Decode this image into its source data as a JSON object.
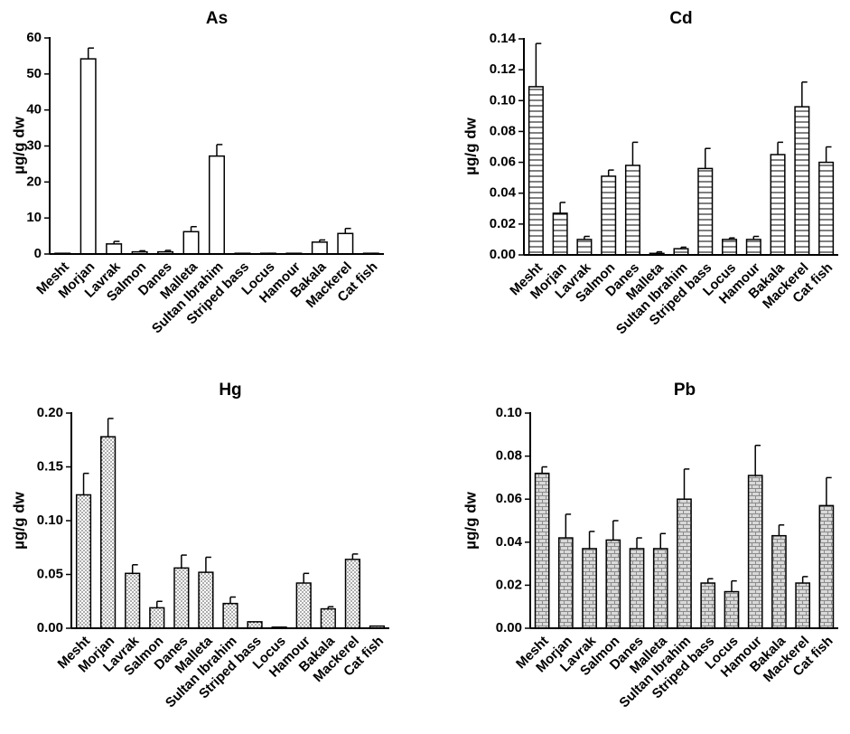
{
  "chart_data": [
    {
      "type": "bar",
      "title": "As",
      "ylabel": "µg/g dw",
      "xlabel": "",
      "ylim": [
        0,
        60
      ],
      "yticks": [
        "0",
        "10",
        "20",
        "30",
        "40",
        "50",
        "60"
      ],
      "pattern": "plain",
      "categories": [
        "Mesht",
        "Morjan",
        "Lavrak",
        "Salmon",
        "Danes",
        "Malleta",
        "Sultan Ibrahim",
        "Striped bass",
        "Locus",
        "Hamour",
        "Bakala",
        "Mackerel",
        "Cat fish"
      ],
      "values": [
        0,
        54.2,
        2.8,
        0.6,
        0.6,
        6.2,
        27.2,
        0,
        0.1,
        0,
        3.3,
        5.7,
        0.1
      ],
      "errors": [
        0,
        3.0,
        0.7,
        0.3,
        0.4,
        1.4,
        3.2,
        0,
        0.1,
        0,
        0.6,
        1.4,
        0.1
      ]
    },
    {
      "type": "bar",
      "title": "Cd",
      "ylabel": "µg/g dw",
      "xlabel": "",
      "ylim": [
        0,
        0.14
      ],
      "yticks": [
        "0.00",
        "0.02",
        "0.04",
        "0.06",
        "0.08",
        "0.10",
        "0.12",
        "0.14"
      ],
      "pattern": "horizontal-lines",
      "categories": [
        "Mesht",
        "Morjan",
        "Lavrak",
        "Salmon",
        "Danes",
        "Malleta",
        "Sultan Ibrahim",
        "Striped bass",
        "Locus",
        "Hamour",
        "Bakala",
        "Mackerel",
        "Cat fish"
      ],
      "values": [
        0.109,
        0.027,
        0.01,
        0.051,
        0.058,
        0.001,
        0.004,
        0.056,
        0.01,
        0.01,
        0.065,
        0.096,
        0.06
      ],
      "errors": [
        0.028,
        0.007,
        0.002,
        0.004,
        0.015,
        0.001,
        0.001,
        0.013,
        0.001,
        0.002,
        0.008,
        0.016,
        0.01
      ]
    },
    {
      "type": "bar",
      "title": "Hg",
      "ylabel": "µg/g dw",
      "xlabel": "",
      "ylim": [
        0,
        0.2
      ],
      "yticks": [
        "0.00",
        "0.05",
        "0.10",
        "0.15",
        "0.20"
      ],
      "pattern": "dots",
      "categories": [
        "Mesht",
        "Morjan",
        "Lavrak",
        "Salmon",
        "Danes",
        "Malleta",
        "Sultan Ibrahim",
        "Striped bass",
        "Locus",
        "Hamour",
        "Bakala",
        "Mackerel",
        "Cat fish"
      ],
      "values": [
        0.124,
        0.178,
        0.051,
        0.019,
        0.056,
        0.052,
        0.023,
        0.006,
        0.001,
        0.042,
        0.018,
        0.064,
        0.002
      ],
      "errors": [
        0.02,
        0.017,
        0.008,
        0.006,
        0.012,
        0.014,
        0.006,
        0.0,
        0.0,
        0.009,
        0.002,
        0.005,
        0.0
      ]
    },
    {
      "type": "bar",
      "title": "Pb",
      "ylabel": "µg/g dw",
      "xlabel": "",
      "ylim": [
        0,
        0.1
      ],
      "yticks": [
        "0.00",
        "0.02",
        "0.04",
        "0.06",
        "0.08",
        "0.10"
      ],
      "pattern": "brick",
      "categories": [
        "Mesht",
        "Morjan",
        "Lavrak",
        "Salmon",
        "Danes",
        "Malleta",
        "Sultan Ibrahim",
        "Striped bass",
        "Locus",
        "Hamour",
        "Bakala",
        "Mackerel",
        "Cat fish"
      ],
      "values": [
        0.072,
        0.042,
        0.037,
        0.041,
        0.037,
        0.037,
        0.06,
        0.021,
        0.017,
        0.071,
        0.043,
        0.021,
        0.057
      ],
      "errors": [
        0.003,
        0.011,
        0.008,
        0.009,
        0.005,
        0.007,
        0.014,
        0.002,
        0.005,
        0.014,
        0.005,
        0.003,
        0.013
      ]
    }
  ]
}
